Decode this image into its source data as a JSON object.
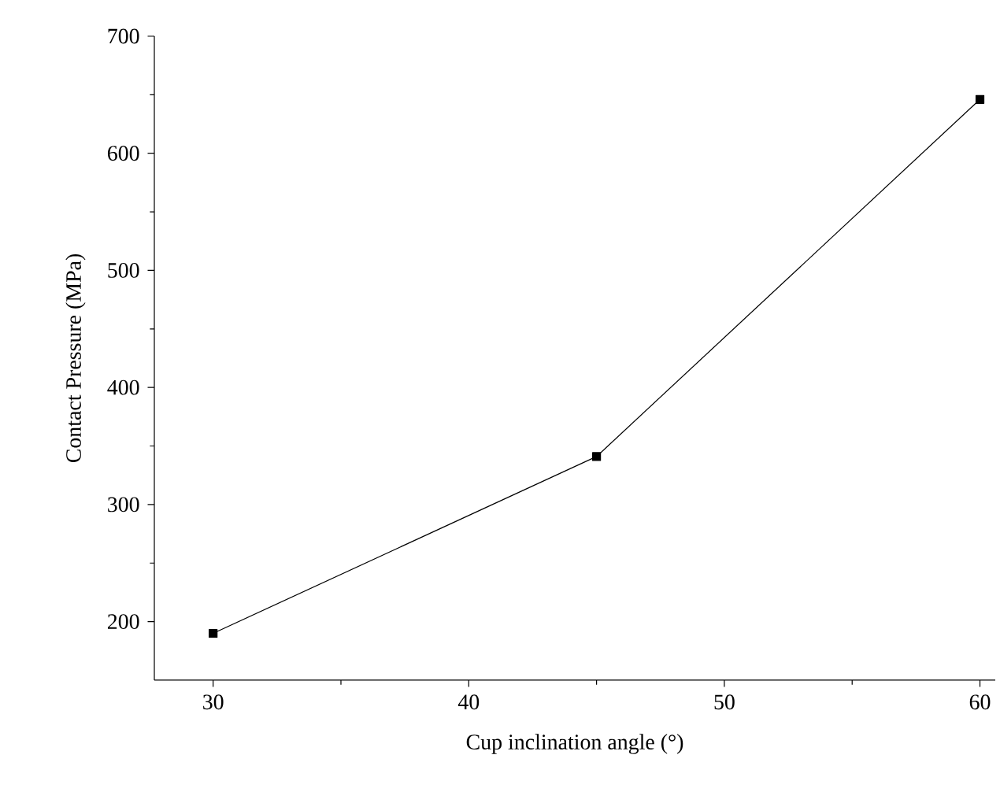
{
  "chart_data": {
    "type": "line",
    "xlabel": "Cup inclination angle (°)",
    "ylabel": "Contact Pressure (MPa)",
    "x": [
      30,
      45,
      60
    ],
    "series": [
      {
        "color": "#000000",
        "values": [
          190,
          341,
          646
        ]
      }
    ],
    "marker": "square",
    "line_style": "solid",
    "grid": false,
    "xlim": [
      27.7,
      60.6
    ],
    "ylim": [
      150,
      700
    ],
    "xticks": [
      30,
      40,
      50,
      60
    ],
    "yticks": [
      200,
      300,
      400,
      500,
      600,
      700
    ]
  }
}
